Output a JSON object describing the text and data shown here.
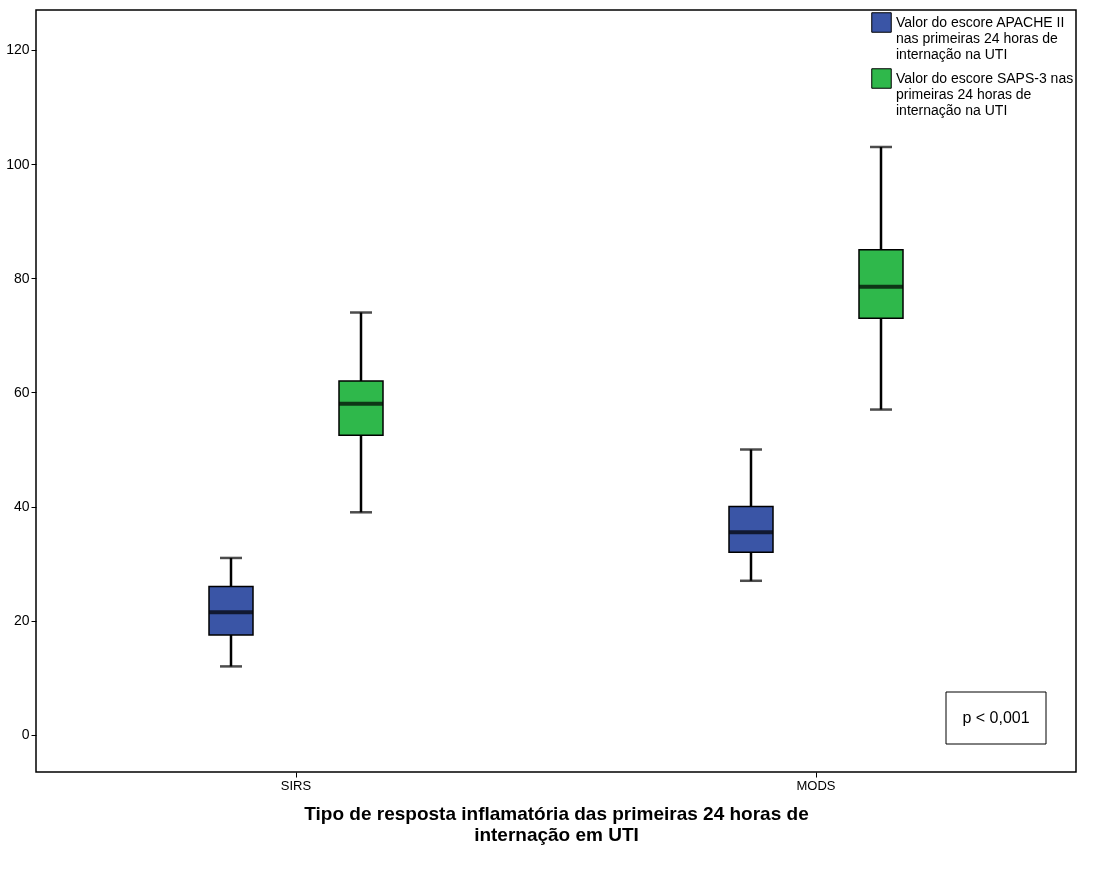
{
  "chart_data": {
    "type": "box",
    "xlabel": "Tipo de resposta inflamatória das primeiras 24 horas de internação em UTI",
    "categories": [
      "SIRS",
      "MODS"
    ],
    "series": [
      {
        "name": "Valor do escore APACHE II nas primeiras 24 horas de internação na UTI",
        "color": "#3a55a6",
        "boxes": [
          {
            "low": 12,
            "q1": 17.5,
            "median": 21.5,
            "q3": 26,
            "high": 31
          },
          {
            "low": 27,
            "q1": 32,
            "median": 35.5,
            "q3": 40,
            "high": 50
          }
        ]
      },
      {
        "name": "Valor do escore SAPS-3 nas primeiras 24 horas de internação na UTI",
        "color": "#2fb84b",
        "boxes": [
          {
            "low": 39,
            "q1": 52.5,
            "median": 58,
            "q3": 62,
            "high": 74
          },
          {
            "low": 57,
            "q1": 73,
            "median": 78.5,
            "q3": 85,
            "high": 103
          }
        ]
      }
    ],
    "ylim": [
      -6.5,
      127
    ],
    "yticks": [
      0,
      20,
      40,
      60,
      80,
      100,
      120
    ],
    "grid": false,
    "legend": "top right",
    "annotations": [
      "p < 0,001"
    ]
  }
}
